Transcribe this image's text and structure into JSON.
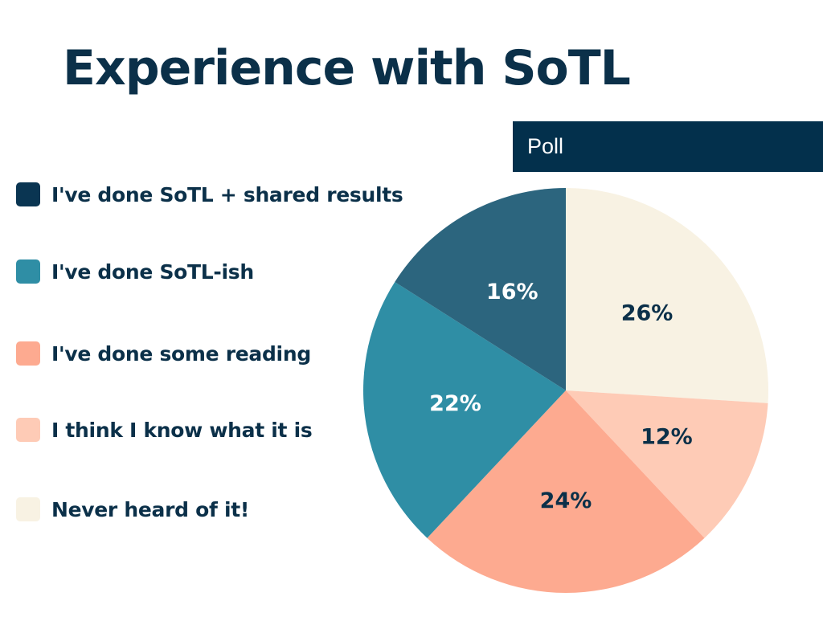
{
  "title": "Experience with SoTL",
  "poll_label": "Poll",
  "chart_data": {
    "type": "pie",
    "title": "Experience with SoTL",
    "legend_position": "left",
    "slices": [
      {
        "label": "Never heard of it!",
        "value": 26,
        "color": "#f8f2e3",
        "text_color": "#0b3049"
      },
      {
        "label": "I think I know what it is",
        "value": 12,
        "color": "#fecbb6",
        "text_color": "#0b3049"
      },
      {
        "label": "I've done some reading",
        "value": 24,
        "color": "#fdaa90",
        "text_color": "#0b3049"
      },
      {
        "label": "I've done SoTL-ish",
        "value": 22,
        "color": "#2f8ea5",
        "text_color": "#ffffff"
      },
      {
        "label": "I've done SoTL + shared results",
        "value": 16,
        "color": "#2c657e",
        "text_color": "#ffffff"
      }
    ],
    "legend": [
      {
        "label": "I've done SoTL + shared results",
        "color": "#0a3552"
      },
      {
        "label": "I've done SoTL-ish",
        "color": "#2f8ea5"
      },
      {
        "label": "I've done some reading",
        "color": "#fdaa90"
      },
      {
        "label": "I think I know what it is",
        "color": "#fecbb6"
      },
      {
        "label": "Never heard of it!",
        "color": "#f8f2e3"
      }
    ]
  }
}
